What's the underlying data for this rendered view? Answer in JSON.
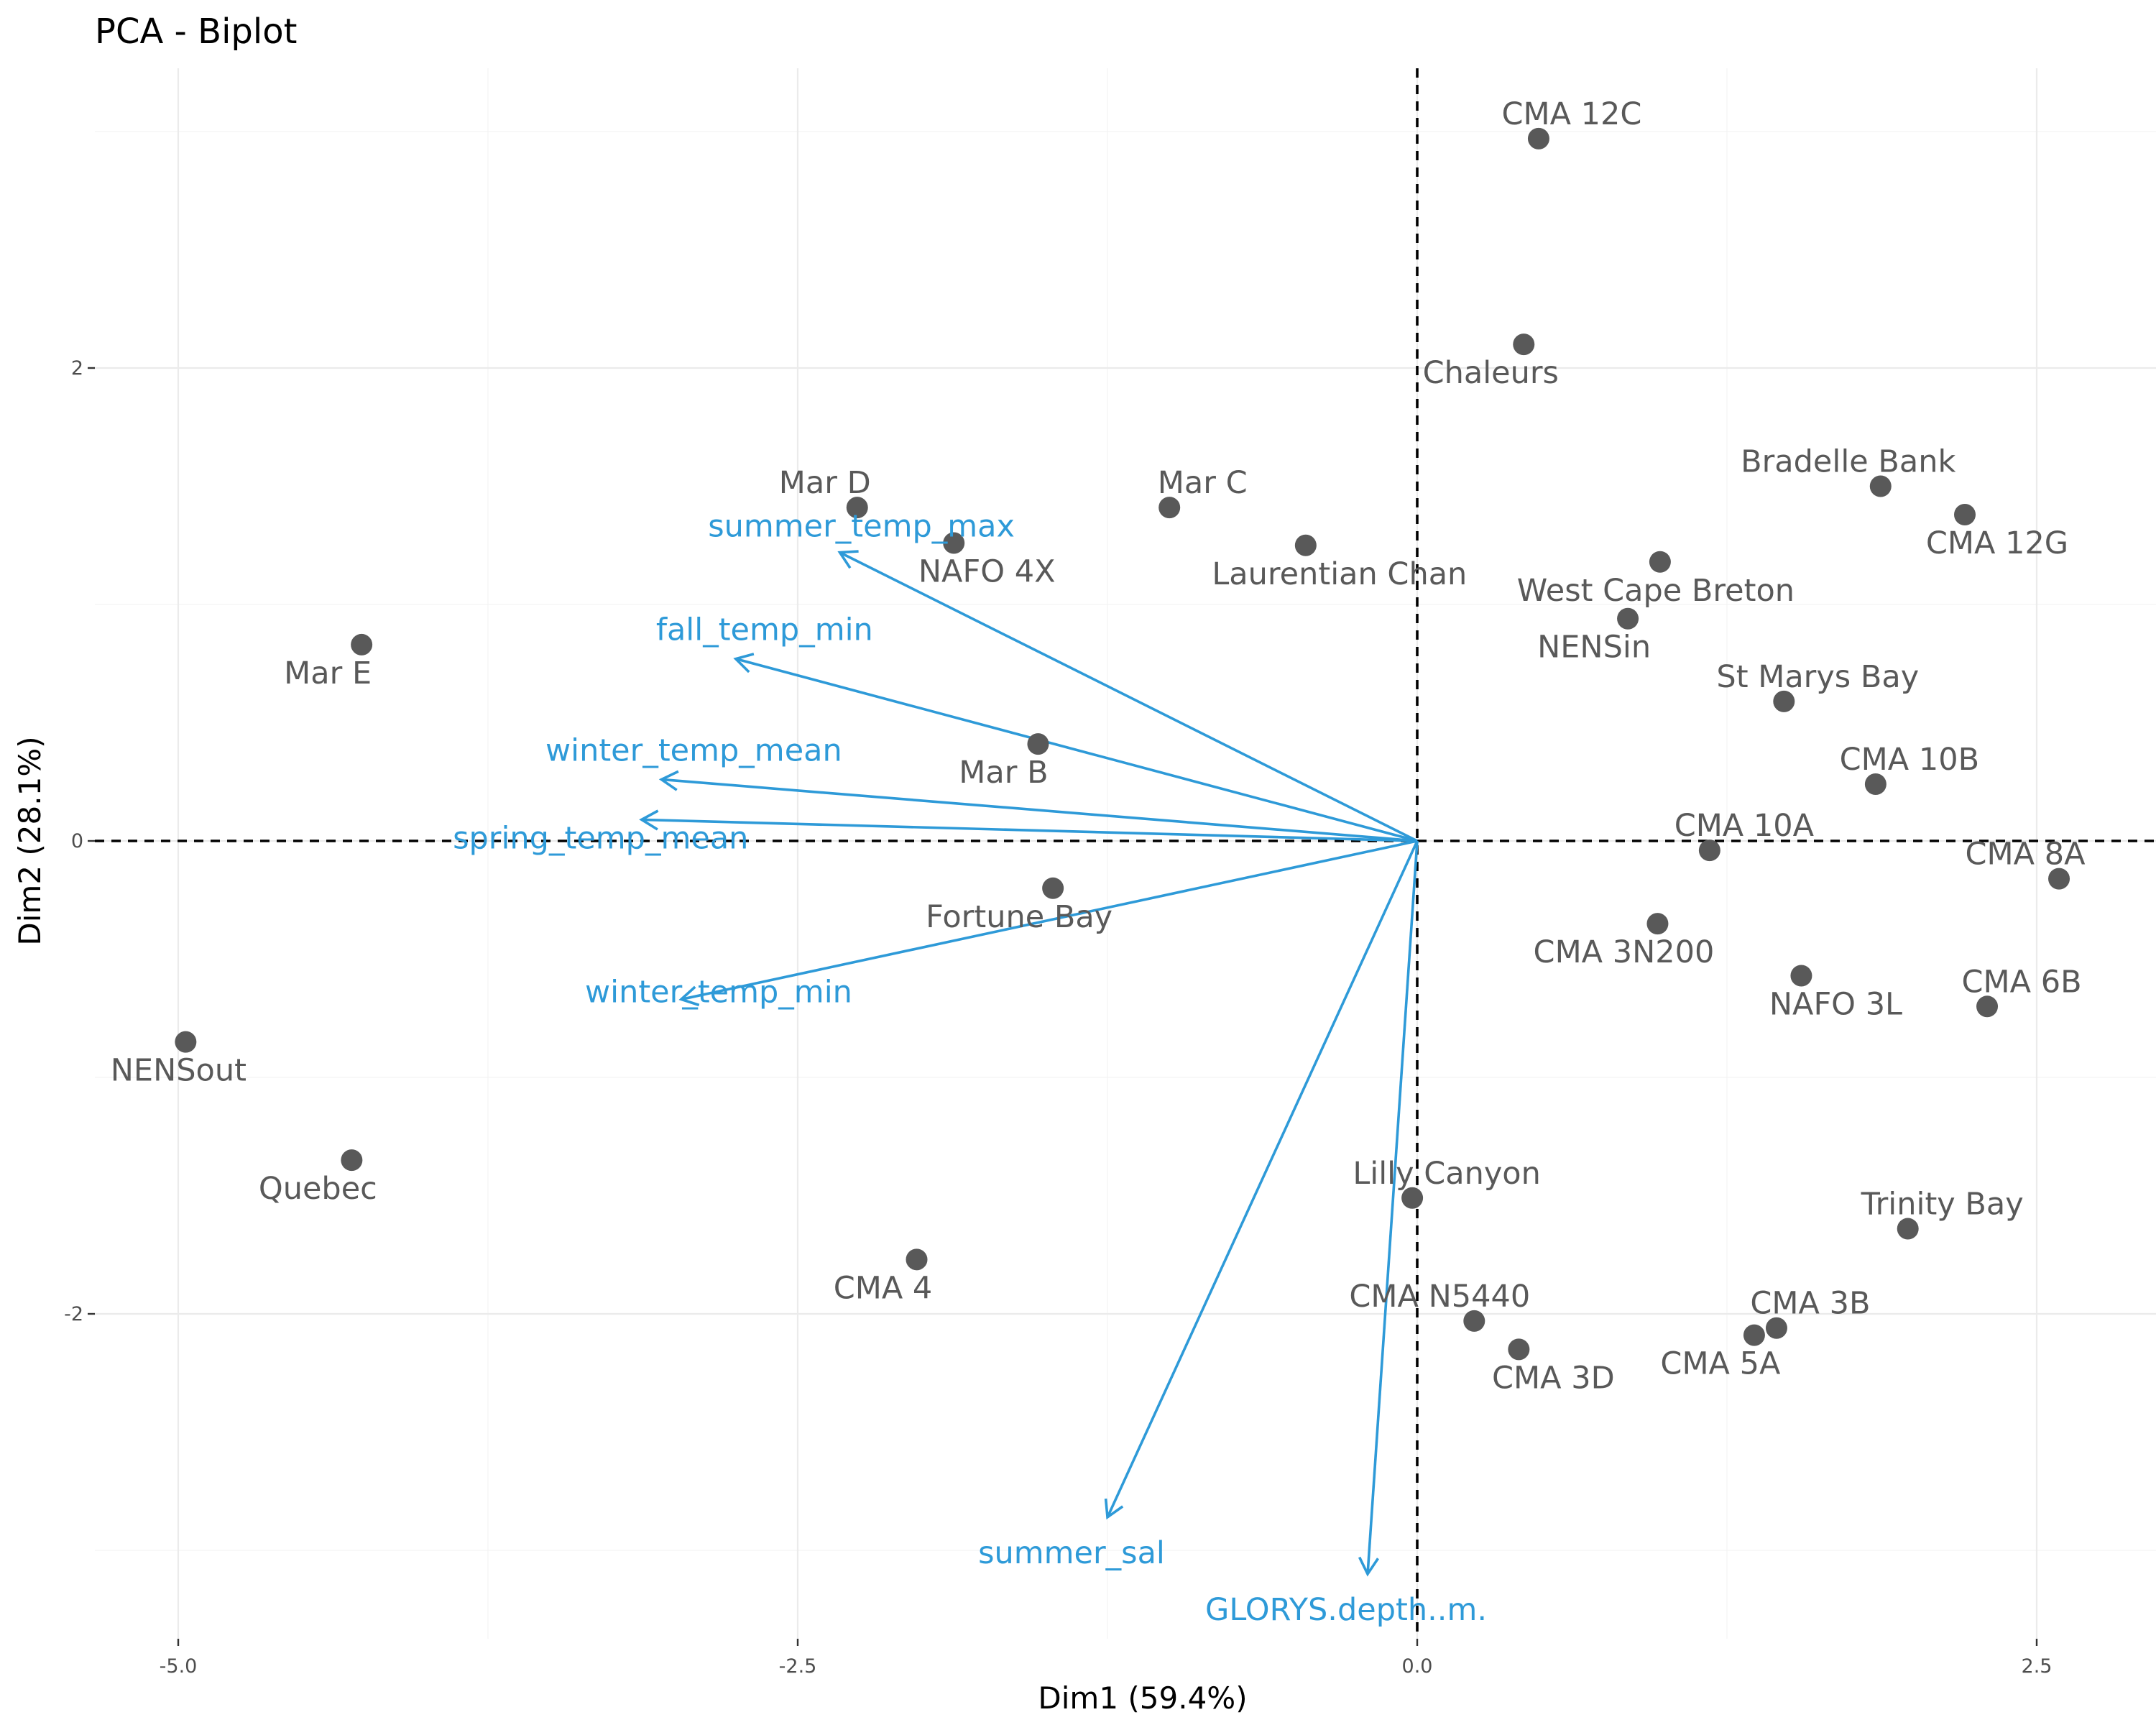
{
  "chart_data": {
    "type": "scatter",
    "title": "PCA - Biplot",
    "xlabel": "Dim1 (59.4%)",
    "ylabel": "Dim2 (28.1%)",
    "xlim": [
      -5.35,
      2.95
    ],
    "ylim": [
      -3.38,
      3.4
    ],
    "x_ticks": [
      -5.0,
      -2.5,
      0.0,
      2.5
    ],
    "x_tick_labels": [
      "-5.0",
      "-2.5",
      "0.0",
      "2.5"
    ],
    "y_ticks": [
      -2,
      0,
      2
    ],
    "y_tick_labels": [
      "-2",
      "0",
      "2"
    ],
    "grid": true,
    "legend": "none",
    "point_color": "#595959",
    "arrow_color": "#2e9ad8",
    "points": [
      {
        "label": "CMA 12C",
        "x": 0.49,
        "y": 2.97
      },
      {
        "label": "Chaleurs",
        "x": 0.43,
        "y": 2.1
      },
      {
        "label": "Bradelle Bank",
        "x": 1.87,
        "y": 1.5
      },
      {
        "label": "CMA 12G",
        "x": 2.21,
        "y": 1.38
      },
      {
        "label": "Mar D",
        "x": -2.26,
        "y": 1.41
      },
      {
        "label": "Mar C",
        "x": -1.0,
        "y": 1.41
      },
      {
        "label": "NAFO 4X",
        "x": -1.87,
        "y": 1.26
      },
      {
        "label": "Laurentian Chan",
        "x": -0.45,
        "y": 1.25
      },
      {
        "label": "West Cape Breton",
        "x": 0.98,
        "y": 1.18
      },
      {
        "label": "NENSin",
        "x": 0.85,
        "y": 0.94
      },
      {
        "label": "Mar E",
        "x": -4.26,
        "y": 0.83
      },
      {
        "label": "St Marys Bay",
        "x": 1.48,
        "y": 0.59
      },
      {
        "label": "Mar B",
        "x": -1.53,
        "y": 0.41
      },
      {
        "label": "CMA 10B",
        "x": 1.85,
        "y": 0.24
      },
      {
        "label": "CMA 10A",
        "x": 1.18,
        "y": -0.04
      },
      {
        "label": "CMA 8A",
        "x": 2.59,
        "y": -0.16
      },
      {
        "label": "Fortune Bay",
        "x": -1.47,
        "y": -0.2
      },
      {
        "label": "CMA 3N200",
        "x": 0.97,
        "y": -0.35
      },
      {
        "label": "NAFO 3L",
        "x": 1.55,
        "y": -0.57
      },
      {
        "label": "CMA 6B",
        "x": 2.3,
        "y": -0.7
      },
      {
        "label": "NENSout",
        "x": -4.97,
        "y": -0.85
      },
      {
        "label": "Quebec",
        "x": -4.3,
        "y": -1.35
      },
      {
        "label": "Lilly Canyon",
        "x": -0.02,
        "y": -1.51
      },
      {
        "label": "Trinity Bay",
        "x": 1.98,
        "y": -1.64
      },
      {
        "label": "CMA 4",
        "x": -2.02,
        "y": -1.77
      },
      {
        "label": "CMA N5440",
        "x": 0.23,
        "y": -2.03
      },
      {
        "label": "CMA 3D",
        "x": 0.41,
        "y": -2.15
      },
      {
        "label": "CMA 3B",
        "x": 1.45,
        "y": -2.06
      },
      {
        "label": "CMA 5A",
        "x": 1.36,
        "y": -2.09
      }
    ],
    "variables": [
      {
        "label": "summer_temp_max",
        "x": -2.33,
        "y": 1.22
      },
      {
        "label": "fall_temp_min",
        "x": -2.75,
        "y": 0.77
      },
      {
        "label": "winter_temp_mean",
        "x": -3.05,
        "y": 0.26
      },
      {
        "label": "spring_temp_mean",
        "x": -3.13,
        "y": 0.09
      },
      {
        "label": "winter_temp_min",
        "x": -2.97,
        "y": -0.67
      },
      {
        "label": "summer_sal",
        "x": -1.25,
        "y": -2.86
      },
      {
        "label": "GLORYS.depth..m.",
        "x": -0.2,
        "y": -3.1
      }
    ]
  }
}
